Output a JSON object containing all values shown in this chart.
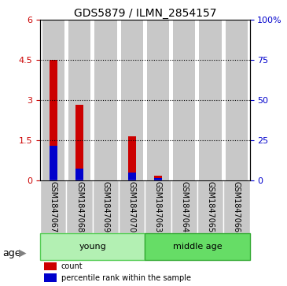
{
  "title": "GDS5879 / ILMN_2854157",
  "samples": [
    "GSM1847067",
    "GSM1847068",
    "GSM1847069",
    "GSM1847070",
    "GSM1847063",
    "GSM1847064",
    "GSM1847065",
    "GSM1847066"
  ],
  "count_values": [
    4.5,
    2.85,
    0.0,
    1.65,
    0.2,
    0.0,
    0.0,
    0.0
  ],
  "percentile_values_left_scale": [
    1.3,
    0.45,
    0.0,
    0.3,
    0.1,
    0.0,
    0.0,
    0.0
  ],
  "count_color": "#cc0000",
  "percentile_color": "#0000cc",
  "ylim_left": [
    0,
    6
  ],
  "ylim_right": [
    0,
    100
  ],
  "yticks_left": [
    0,
    1.5,
    3.0,
    4.5,
    6.0
  ],
  "ytick_labels_left": [
    "0",
    "1.5",
    "3",
    "4.5",
    "6"
  ],
  "yticks_right": [
    0,
    25,
    50,
    75,
    100
  ],
  "ytick_labels_right": [
    "0",
    "25",
    "50",
    "75",
    "100%"
  ],
  "groups": [
    {
      "label": "young",
      "start": 0,
      "end": 3,
      "color": "#b3f0b3",
      "edge_color": "#55cc55"
    },
    {
      "label": "middle age",
      "start": 4,
      "end": 7,
      "color": "#66dd66",
      "edge_color": "#33aa33"
    }
  ],
  "age_label": "age",
  "bar_bg_color": "#c8c8c8",
  "bar_edge_color": "#ffffff",
  "legend_count": "count",
  "legend_percentile": "percentile rank within the sample",
  "title_fontsize": 10,
  "tick_fontsize": 8,
  "label_fontsize": 7,
  "group_fontsize": 8,
  "age_fontsize": 9
}
